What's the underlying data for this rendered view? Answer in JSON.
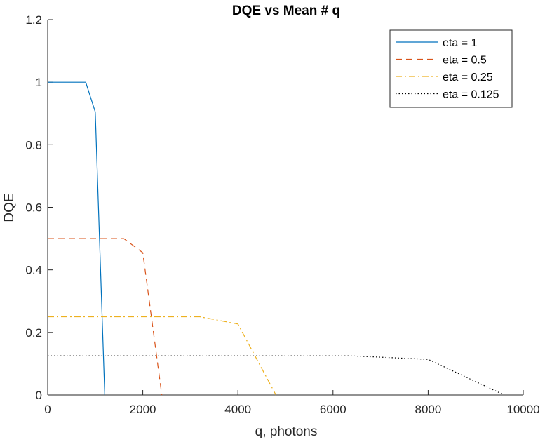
{
  "chart_data": {
    "type": "line",
    "title": "DQE vs Mean # q",
    "xlabel": "q, photons",
    "ylabel": "DQE",
    "xlim": [
      0,
      10000
    ],
    "ylim": [
      0,
      1.2
    ],
    "xticks": [
      0,
      2000,
      4000,
      6000,
      8000,
      10000
    ],
    "yticks": [
      0,
      0.2,
      0.4,
      0.6,
      0.8,
      1,
      1.2
    ],
    "grid": false,
    "legend_position": "top-right",
    "series": [
      {
        "name": "eta = 1",
        "color": "#0072BD",
        "dash": "solid",
        "x": [
          0,
          200,
          400,
          600,
          800,
          1000,
          1200
        ],
        "y": [
          1,
          1,
          1,
          1,
          1,
          0.905,
          0
        ]
      },
      {
        "name": "eta = 0.5",
        "color": "#D95319",
        "dash": "dashed",
        "x": [
          0,
          400,
          800,
          1200,
          1600,
          2000,
          2400
        ],
        "y": [
          0.5,
          0.5,
          0.5,
          0.5,
          0.5,
          0.455,
          0
        ]
      },
      {
        "name": "eta = 0.25",
        "color": "#EDB120",
        "dash": "dashdot",
        "x": [
          0,
          800,
          1600,
          2400,
          3200,
          4000,
          4800
        ],
        "y": [
          0.25,
          0.25,
          0.25,
          0.25,
          0.25,
          0.227,
          0
        ]
      },
      {
        "name": "eta = 0.125",
        "color": "#000000",
        "dash": "dotted",
        "x": [
          0,
          1600,
          3200,
          4800,
          6400,
          8000,
          9600
        ],
        "y": [
          0.125,
          0.125,
          0.125,
          0.125,
          0.125,
          0.114,
          0
        ]
      }
    ]
  }
}
